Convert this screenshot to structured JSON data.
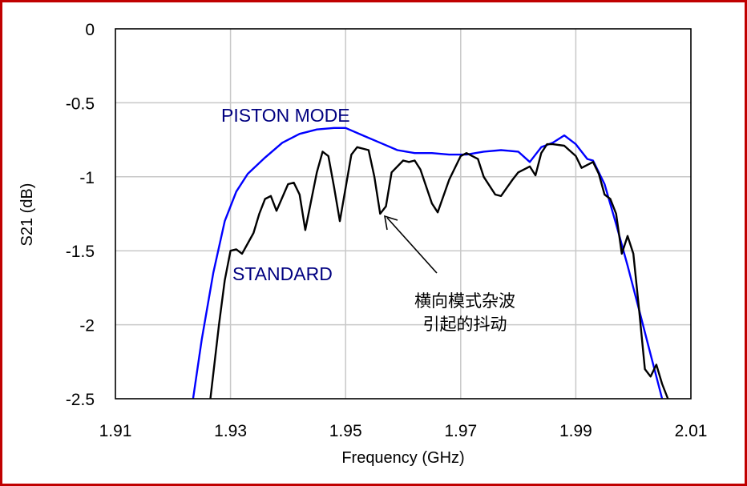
{
  "chart_data": {
    "type": "line",
    "title": "",
    "xlabel": "Frequency (GHz)",
    "ylabel": "S21 (dB)",
    "xlim": [
      1.91,
      2.01
    ],
    "ylim": [
      -2.5,
      0
    ],
    "x_ticks": [
      "1.91",
      "1.93",
      "1.95",
      "1.97",
      "1.99",
      "2.01"
    ],
    "y_ticks": [
      "0",
      "-0.5",
      "-1",
      "-1.5",
      "-2",
      "-2.5"
    ],
    "grid": true,
    "legend": "inline labels",
    "series": [
      {
        "name": "PISTON MODE",
        "color": "#0000ff",
        "x": [
          1.9235,
          1.925,
          1.927,
          1.929,
          1.931,
          1.933,
          1.936,
          1.939,
          1.942,
          1.945,
          1.948,
          1.95,
          1.953,
          1.956,
          1.959,
          1.962,
          1.965,
          1.968,
          1.971,
          1.974,
          1.977,
          1.98,
          1.982,
          1.984,
          1.986,
          1.988,
          1.99,
          1.992,
          1.993,
          1.995,
          1.997,
          1.999,
          2.001,
          2.003,
          2.005
        ],
        "y": [
          -2.5,
          -2.1,
          -1.65,
          -1.3,
          -1.1,
          -0.98,
          -0.87,
          -0.77,
          -0.71,
          -0.68,
          -0.67,
          -0.67,
          -0.72,
          -0.77,
          -0.82,
          -0.84,
          -0.84,
          -0.85,
          -0.85,
          -0.83,
          -0.82,
          -0.83,
          -0.9,
          -0.8,
          -0.77,
          -0.72,
          -0.78,
          -0.88,
          -0.89,
          -1.05,
          -1.32,
          -1.6,
          -1.9,
          -2.2,
          -2.5
        ]
      },
      {
        "name": "STANDARD",
        "color": "#000000",
        "x": [
          1.9265,
          1.928,
          1.929,
          1.93,
          1.931,
          1.932,
          1.934,
          1.935,
          1.936,
          1.937,
          1.938,
          1.94,
          1.941,
          1.942,
          1.943,
          1.945,
          1.946,
          1.947,
          1.948,
          1.949,
          1.951,
          1.952,
          1.954,
          1.955,
          1.956,
          1.957,
          1.958,
          1.96,
          1.961,
          1.962,
          1.963,
          1.965,
          1.966,
          1.968,
          1.97,
          1.971,
          1.973,
          1.974,
          1.976,
          1.977,
          1.979,
          1.98,
          1.982,
          1.983,
          1.984,
          1.985,
          1.986,
          1.988,
          1.99,
          1.991,
          1.993,
          1.994,
          1.995,
          1.996,
          1.997,
          1.998,
          1.999,
          2.0,
          2.001,
          2.002,
          2.003,
          2.004,
          2.005,
          2.006
        ],
        "y": [
          -2.5,
          -2.0,
          -1.7,
          -1.5,
          -1.49,
          -1.52,
          -1.38,
          -1.25,
          -1.15,
          -1.13,
          -1.23,
          -1.05,
          -1.04,
          -1.12,
          -1.36,
          -0.97,
          -0.83,
          -0.86,
          -1.07,
          -1.3,
          -0.85,
          -0.8,
          -0.82,
          -1.0,
          -1.25,
          -1.2,
          -0.97,
          -0.89,
          -0.9,
          -0.89,
          -0.95,
          -1.18,
          -1.24,
          -1.02,
          -0.86,
          -0.84,
          -0.88,
          -1.0,
          -1.12,
          -1.13,
          -1.02,
          -0.97,
          -0.93,
          -0.99,
          -0.84,
          -0.78,
          -0.78,
          -0.79,
          -0.86,
          -0.94,
          -0.9,
          -0.98,
          -1.12,
          -1.15,
          -1.25,
          -1.52,
          -1.4,
          -1.52,
          -1.9,
          -2.3,
          -2.35,
          -2.27,
          -2.4,
          -2.5
        ]
      }
    ],
    "annotations": [
      {
        "text": "PISTON MODE",
        "target": "PISTON MODE series label"
      },
      {
        "text": "STANDARD",
        "target": "STANDARD series label"
      },
      {
        "text_line1": "横向模式杂波",
        "text_line2": "引起的抖动",
        "arrow_to": [
          1.956,
          -1.26
        ]
      }
    ]
  },
  "labels": {
    "piston": "PISTON MODE",
    "standard": "STANDARD",
    "anno_line1": "横向模式杂波",
    "anno_line2": "引起的抖动",
    "xlabel": "Frequency (GHz)",
    "ylabel": "S21 (dB)"
  }
}
